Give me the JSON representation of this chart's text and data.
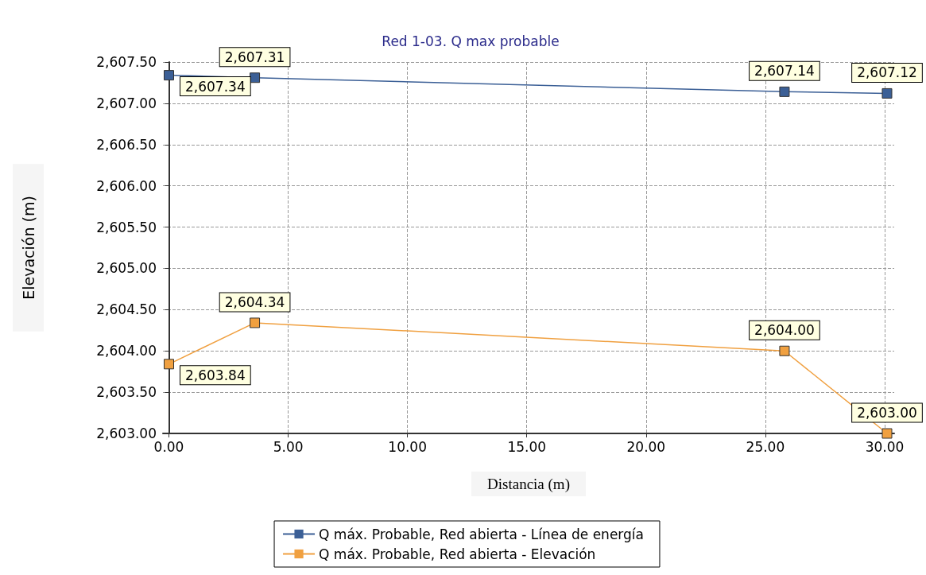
{
  "chart_data": {
    "type": "line",
    "title": "Red 1-03. Q max probable",
    "xlabel": "Distancia (m)",
    "ylabel": "Elevación (m)",
    "x": [
      0,
      3.6,
      25.8,
      30.1
    ],
    "series": [
      {
        "name": "Q máx. Probable, Red abierta - Línea de energía",
        "color": "#3b5f96",
        "values": [
          2607.34,
          2607.31,
          2607.14,
          2607.12
        ],
        "value_labels": [
          "2,607.34",
          "2,607.31",
          "2,607.14",
          "2,607.12"
        ]
      },
      {
        "name": "Q máx. Probable, Red abierta - Elevación",
        "color": "#f0a040",
        "values": [
          2603.84,
          2604.34,
          2604.0,
          2603.0
        ],
        "value_labels": [
          "2,603.84",
          "2,604.34",
          "2,604.00",
          "2,603.00"
        ]
      }
    ],
    "xlim": [
      -0.25,
      30.4
    ],
    "xticks": [
      {
        "value": 0,
        "label": "0.00"
      },
      {
        "value": 5,
        "label": "5.00"
      },
      {
        "value": 10,
        "label": "10.00"
      },
      {
        "value": 15,
        "label": "15.00"
      },
      {
        "value": 20,
        "label": "20.00"
      },
      {
        "value": 25,
        "label": "25.00"
      },
      {
        "value": 30,
        "label": "30.00"
      }
    ],
    "ylim": [
      2603,
      2607.5
    ],
    "yticks": [
      {
        "value": 2603,
        "label": "2,603.00"
      },
      {
        "value": 2603.5,
        "label": "2,603.50"
      },
      {
        "value": 2604,
        "label": "2,604.00"
      },
      {
        "value": 2604.5,
        "label": "2,604.50"
      },
      {
        "value": 2605,
        "label": "2,605.00"
      },
      {
        "value": 2605.5,
        "label": "2,605.50"
      },
      {
        "value": 2606,
        "label": "2,606.00"
      },
      {
        "value": 2606.5,
        "label": "2,606.50"
      },
      {
        "value": 2607,
        "label": "2,607.00"
      },
      {
        "value": 2607.5,
        "label": "2,607.50"
      }
    ],
    "grid": true,
    "legend": "bottom",
    "marker": "square",
    "line_style": "solid"
  }
}
